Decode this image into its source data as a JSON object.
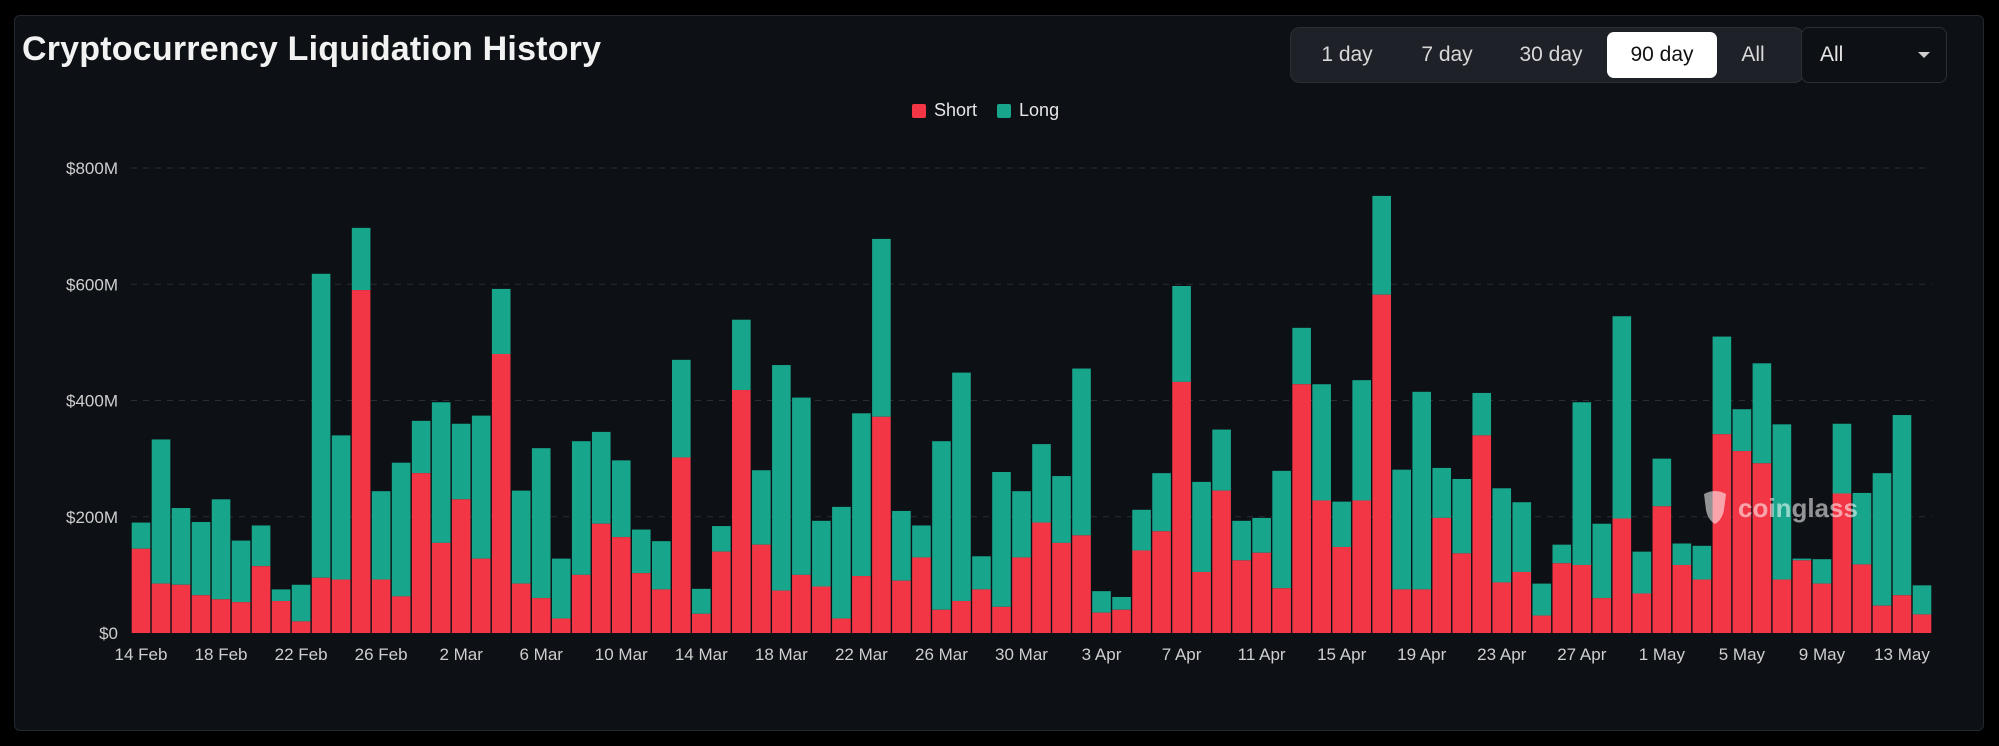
{
  "title": "Cryptocurrency Liquidation History",
  "range_buttons": [
    {
      "label": "1 day"
    },
    {
      "label": "7 day"
    },
    {
      "label": "30 day"
    },
    {
      "label": "90 day",
      "active": true
    },
    {
      "label": "All"
    }
  ],
  "coin_select": {
    "value": "All"
  },
  "watermark": "coinglass",
  "colors": {
    "short": "#f23645",
    "long": "#17a58c",
    "grid": "#2a2e35",
    "text": "#cfcfcf"
  },
  "chart_data": {
    "type": "bar",
    "stacked": true,
    "title": "",
    "xlabel": "",
    "ylabel": "",
    "ylim": [
      0,
      800
    ],
    "y_ticks": [
      0,
      200,
      400,
      600,
      800
    ],
    "y_tick_labels": [
      "$0",
      "$200M",
      "$400M",
      "$600M",
      "$800M"
    ],
    "grid": true,
    "legend": "top-center",
    "x_tick_labels": [
      "14 Feb",
      "18 Feb",
      "22 Feb",
      "26 Feb",
      "2 Mar",
      "6 Mar",
      "10 Mar",
      "14 Mar",
      "18 Mar",
      "22 Mar",
      "26 Mar",
      "30 Mar",
      "3 Apr",
      "7 Apr",
      "11 Apr",
      "15 Apr",
      "19 Apr",
      "23 Apr",
      "27 Apr",
      "1 May",
      "5 May",
      "9 May",
      "13 May"
    ],
    "series": [
      {
        "name": "Short",
        "values": [
          145,
          85,
          83,
          65,
          58,
          53,
          115,
          55,
          20,
          95,
          92,
          590,
          92,
          63,
          275,
          155,
          230,
          128,
          480,
          85,
          60,
          25,
          100,
          188,
          165,
          103,
          75,
          302,
          33,
          140,
          418,
          152,
          73,
          100,
          80,
          25,
          98,
          372,
          90,
          130,
          40,
          55,
          75,
          45,
          130,
          190,
          155,
          168,
          35,
          40,
          142,
          175,
          432,
          105,
          245,
          125,
          138,
          77,
          428,
          228,
          148,
          228,
          582,
          75,
          75,
          198,
          137,
          340,
          87,
          105,
          30,
          120,
          117,
          60,
          197,
          68,
          218,
          117,
          92,
          342,
          313,
          292,
          92,
          125,
          85,
          240,
          118,
          47,
          65,
          32
        ]
      },
      {
        "name": "Long",
        "values": [
          45,
          248,
          132,
          126,
          172,
          106,
          70,
          20,
          63,
          523,
          248,
          107,
          152,
          230,
          90,
          242,
          130,
          246,
          112,
          160,
          258,
          103,
          230,
          158,
          132,
          75,
          83,
          168,
          43,
          44,
          121,
          128,
          388,
          305,
          113,
          192,
          280,
          306,
          120,
          55,
          290,
          393,
          57,
          232,
          114,
          135,
          115,
          287,
          37,
          22,
          70,
          100,
          165,
          155,
          105,
          68,
          60,
          202,
          97,
          200,
          78,
          207,
          170,
          206,
          340,
          86,
          128,
          73,
          162,
          120,
          55,
          32,
          280,
          128,
          348,
          72,
          82,
          37,
          58,
          168,
          72,
          172,
          267,
          3,
          42,
          120,
          123,
          228,
          310,
          50
        ]
      }
    ]
  }
}
